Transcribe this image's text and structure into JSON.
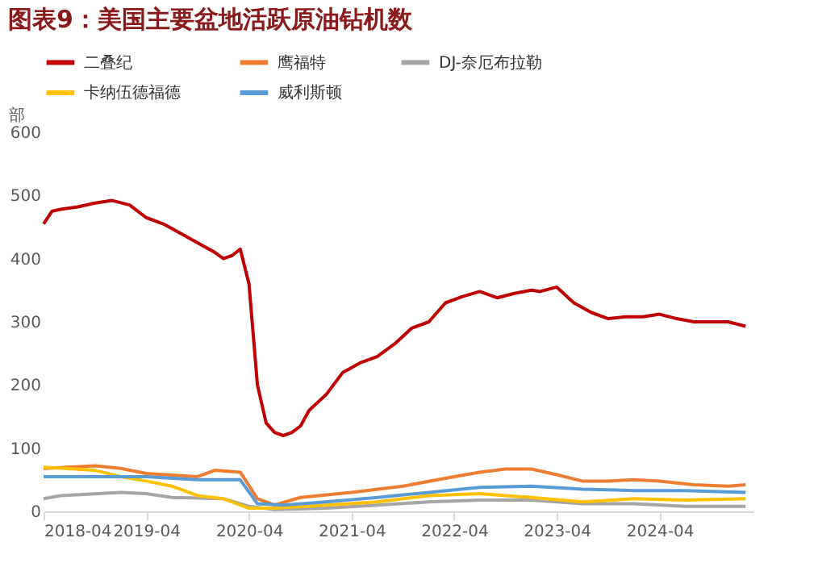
{
  "chart_data": {
    "type": "line",
    "title": "图表9：美国主要盆地活跃原油钻机数",
    "ylabel": "部",
    "xlim": [
      "2018-04",
      "2025-03"
    ],
    "xticks": [
      {
        "value": "2018-04",
        "label": "2018-04"
      },
      {
        "value": "2019-04",
        "label": "2019-04"
      },
      {
        "value": "2020-04",
        "label": "2020-04"
      },
      {
        "value": "2021-04",
        "label": "2021-04"
      },
      {
        "value": "2022-04",
        "label": "2022-04"
      },
      {
        "value": "2023-04",
        "label": "2023-04"
      },
      {
        "value": "2024-04",
        "label": "2024-04"
      }
    ],
    "ylim": [
      0,
      600
    ],
    "yticks": [
      0,
      100,
      200,
      300,
      400,
      500,
      600
    ],
    "grid": false,
    "legend": "top",
    "marker": "none",
    "line_style": "solid",
    "series": [
      {
        "name": "二叠纪",
        "color": "#c00000",
        "x": [
          "2018-04",
          "2018-05",
          "2018-06",
          "2018-08",
          "2018-10",
          "2018-12",
          "2019-02",
          "2019-04",
          "2019-06",
          "2019-08",
          "2019-10",
          "2019-12",
          "2020-01",
          "2020-02",
          "2020-03",
          "2020-04",
          "2020-05",
          "2020-06",
          "2020-07",
          "2020-08",
          "2020-09",
          "2020-10",
          "2020-11",
          "2021-01",
          "2021-03",
          "2021-05",
          "2021-07",
          "2021-09",
          "2021-11",
          "2022-01",
          "2022-03",
          "2022-05",
          "2022-07",
          "2022-09",
          "2022-11",
          "2023-01",
          "2023-02",
          "2023-04",
          "2023-06",
          "2023-08",
          "2023-10",
          "2023-12",
          "2024-02",
          "2024-04",
          "2024-06",
          "2024-08",
          "2024-10",
          "2024-12",
          "2025-02"
        ],
        "values": [
          455,
          475,
          478,
          482,
          488,
          492,
          485,
          465,
          455,
          440,
          425,
          410,
          400,
          405,
          415,
          360,
          200,
          140,
          125,
          120,
          125,
          135,
          160,
          185,
          220,
          235,
          245,
          265,
          290,
          300,
          330,
          340,
          348,
          338,
          345,
          350,
          348,
          355,
          330,
          315,
          305,
          308,
          308,
          312,
          305,
          300,
          300,
          300,
          293
        ]
      },
      {
        "name": "鹰福特",
        "color": "#ed7d31",
        "x": [
          "2018-04",
          "2018-10",
          "2019-01",
          "2019-04",
          "2019-10",
          "2019-12",
          "2020-03",
          "2020-05",
          "2020-07",
          "2020-10",
          "2021-04",
          "2021-10",
          "2022-04",
          "2022-07",
          "2022-10",
          "2023-01",
          "2023-04",
          "2023-07",
          "2023-10",
          "2024-01",
          "2024-04",
          "2024-08",
          "2024-12",
          "2025-02"
        ],
        "values": [
          68,
          72,
          68,
          60,
          55,
          65,
          62,
          20,
          10,
          22,
          30,
          40,
          55,
          62,
          67,
          67,
          58,
          48,
          48,
          50,
          48,
          42,
          40,
          42
        ]
      },
      {
        "name": "DJ-奈厄布拉勒",
        "color": "#a5a5a5",
        "x": [
          "2018-04",
          "2018-06",
          "2019-01",
          "2019-04",
          "2019-07",
          "2020-01",
          "2020-04",
          "2020-07",
          "2021-01",
          "2021-07",
          "2022-01",
          "2022-07",
          "2023-01",
          "2023-07",
          "2024-01",
          "2024-07",
          "2025-02"
        ],
        "values": [
          20,
          25,
          30,
          28,
          22,
          20,
          8,
          3,
          5,
          10,
          15,
          18,
          18,
          12,
          12,
          8,
          8
        ]
      },
      {
        "name": "卡纳伍德福德",
        "color": "#ffc000",
        "x": [
          "2018-04",
          "2018-10",
          "2019-01",
          "2019-04",
          "2019-07",
          "2019-10",
          "2020-01",
          "2020-04",
          "2020-07",
          "2021-01",
          "2021-07",
          "2022-01",
          "2022-07",
          "2022-10",
          "2023-01",
          "2023-07",
          "2024-01",
          "2024-07",
          "2025-02"
        ],
        "values": [
          70,
          65,
          55,
          48,
          40,
          25,
          20,
          5,
          5,
          10,
          15,
          25,
          28,
          25,
          22,
          15,
          20,
          18,
          20
        ]
      },
      {
        "name": "威利斯顿",
        "color": "#5b9bd5",
        "x": [
          "2018-04",
          "2018-10",
          "2019-04",
          "2019-10",
          "2020-03",
          "2020-05",
          "2020-08",
          "2021-01",
          "2021-07",
          "2022-01",
          "2022-07",
          "2023-01",
          "2023-07",
          "2024-01",
          "2024-07",
          "2025-02"
        ],
        "values": [
          55,
          55,
          55,
          50,
          50,
          12,
          10,
          15,
          22,
          30,
          38,
          40,
          35,
          33,
          33,
          30
        ]
      }
    ]
  }
}
